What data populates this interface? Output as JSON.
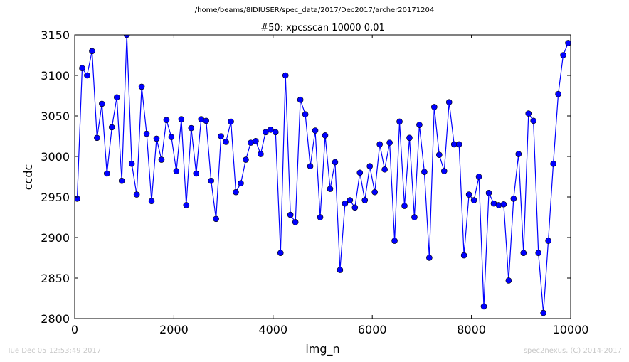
{
  "header": {
    "path": "/home/beams/8IDIUSER/spec_data/2017/Dec2017/archer20171204"
  },
  "footer": {
    "timestamp": "Tue Dec 05 12:53:49 2017",
    "credit": "spec2nexus, (C) 2014-2017"
  },
  "colors": {
    "line": "#0000ff",
    "marker": "#0000ff"
  },
  "chart_data": {
    "type": "line",
    "title": "#50: xpcsscan 10000 0.01",
    "xlabel": "img_n",
    "ylabel": "ccdc",
    "xlim": [
      0,
      10000
    ],
    "ylim": [
      2800,
      3150
    ],
    "xticks": [
      0,
      2000,
      4000,
      6000,
      8000,
      10000
    ],
    "yticks": [
      2800,
      2850,
      2900,
      2950,
      3000,
      3050,
      3100,
      3150
    ],
    "grid": false,
    "legend": "none",
    "series": [
      {
        "x": [
          50,
          150,
          250,
          350,
          450,
          550,
          650,
          750,
          850,
          950,
          1050,
          1150,
          1250,
          1350,
          1450,
          1550,
          1650,
          1750,
          1850,
          1950,
          2050,
          2150,
          2250,
          2350,
          2450,
          2550,
          2650,
          2750,
          2850,
          2950,
          3050,
          3150,
          3250,
          3350,
          3450,
          3550,
          3650,
          3750,
          3850,
          3950,
          4050,
          4150,
          4250,
          4350,
          4450,
          4550,
          4650,
          4750,
          4850,
          4950,
          5050,
          5150,
          5250,
          5350,
          5450,
          5550,
          5650,
          5750,
          5850,
          5950,
          6050,
          6150,
          6250,
          6350,
          6450,
          6550,
          6650,
          6750,
          6850,
          6950,
          7050,
          7150,
          7250,
          7350,
          7450,
          7550,
          7650,
          7750,
          7850,
          7950,
          8050,
          8150,
          8250,
          8350,
          8450,
          8550,
          8650,
          8750,
          8850,
          8950,
          9050,
          9150,
          9250,
          9350,
          9450,
          9550,
          9650,
          9750,
          9850,
          9950
        ],
        "y": [
          2948,
          3109,
          3100,
          3130,
          3023,
          3065,
          2979,
          3036,
          3073,
          2970,
          3150,
          2991,
          2953,
          3086,
          3028,
          2945,
          3022,
          2996,
          3045,
          3024,
          2982,
          3046,
          2940,
          3035,
          2979,
          3046,
          3044,
          2970,
          2923,
          3025,
          3018,
          3043,
          2956,
          2967,
          2996,
          3017,
          3019,
          3003,
          3030,
          3033,
          3030,
          2881,
          3100,
          2928,
          2919,
          3070,
          3052,
          2988,
          3032,
          2925,
          3026,
          2960,
          2993,
          2860,
          2942,
          2946,
          2937,
          2980,
          2946,
          2988,
          2956,
          3015,
          2984,
          3017,
          2896,
          3043,
          2939,
          3023,
          2925,
          3039,
          2981,
          2875,
          3061,
          3002,
          2982,
          3067,
          3015,
          3015,
          2878,
          2953,
          2946,
          2975,
          2815,
          2955,
          2942,
          2940,
          2941,
          2847,
          2948,
          3003,
          2881,
          3053,
          3044,
          2881,
          2807,
          2896,
          2991,
          3077,
          3125,
          3140
        ]
      }
    ]
  }
}
